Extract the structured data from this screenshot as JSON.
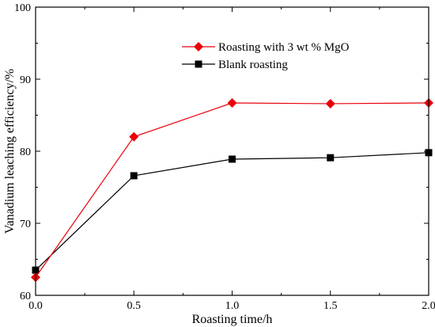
{
  "chart_data": {
    "type": "line",
    "title": "",
    "xlabel": "Roasting time/h",
    "ylabel": "Vanadium leaching efficiency/%",
    "xlim": [
      0.0,
      2.0
    ],
    "ylim": [
      60,
      100
    ],
    "x_ticks": [
      "0.0",
      "0.5",
      "1.0",
      "1.5",
      "2.0"
    ],
    "y_ticks": [
      "60",
      "70",
      "80",
      "90",
      "100"
    ],
    "grid": false,
    "legend_position": "top-right",
    "series": [
      {
        "name": "Roasting with 3 wt % MgO",
        "color": "#e8000b",
        "marker": "diamond",
        "x": [
          0.0,
          0.5,
          1.0,
          1.5,
          2.0
        ],
        "y": [
          62.5,
          82.0,
          86.7,
          86.6,
          86.7
        ]
      },
      {
        "name": "Blank roasting",
        "color": "#000000",
        "marker": "square",
        "x": [
          0.0,
          0.5,
          1.0,
          1.5,
          2.0
        ],
        "y": [
          63.5,
          76.6,
          78.9,
          79.1,
          79.8
        ]
      }
    ]
  }
}
